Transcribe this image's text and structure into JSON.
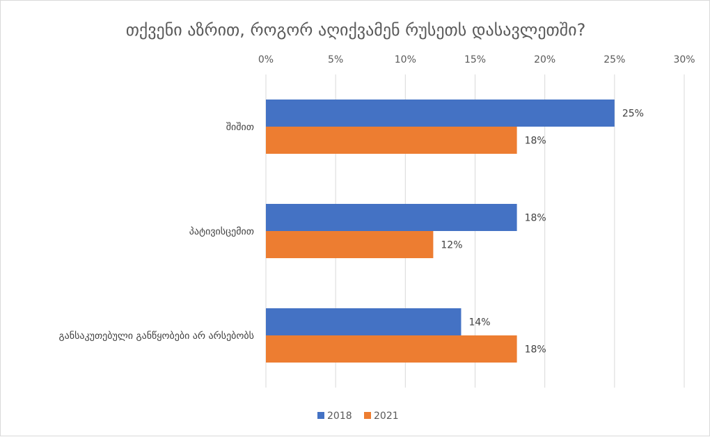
{
  "chart_data": {
    "type": "bar",
    "orientation": "horizontal",
    "title": "თქვენი აზრით, როგორ აღიქვამენ რუსეთს დასავლეთში?",
    "categories": [
      "შიშით",
      "პატივისცემით",
      "განსაკუთებული განწყობები არ არსებობს"
    ],
    "series": [
      {
        "name": "2018",
        "values": [
          25,
          18,
          14
        ],
        "color": "#4472C4"
      },
      {
        "name": "2021",
        "values": [
          18,
          12,
          18
        ],
        "color": "#ED7D31"
      }
    ],
    "xlim": [
      0,
      30
    ],
    "xticks": [
      0,
      5,
      10,
      15,
      20,
      25,
      30
    ],
    "value_suffix": "%",
    "axis_position": "top",
    "grid": true,
    "legend_position": "bottom"
  }
}
